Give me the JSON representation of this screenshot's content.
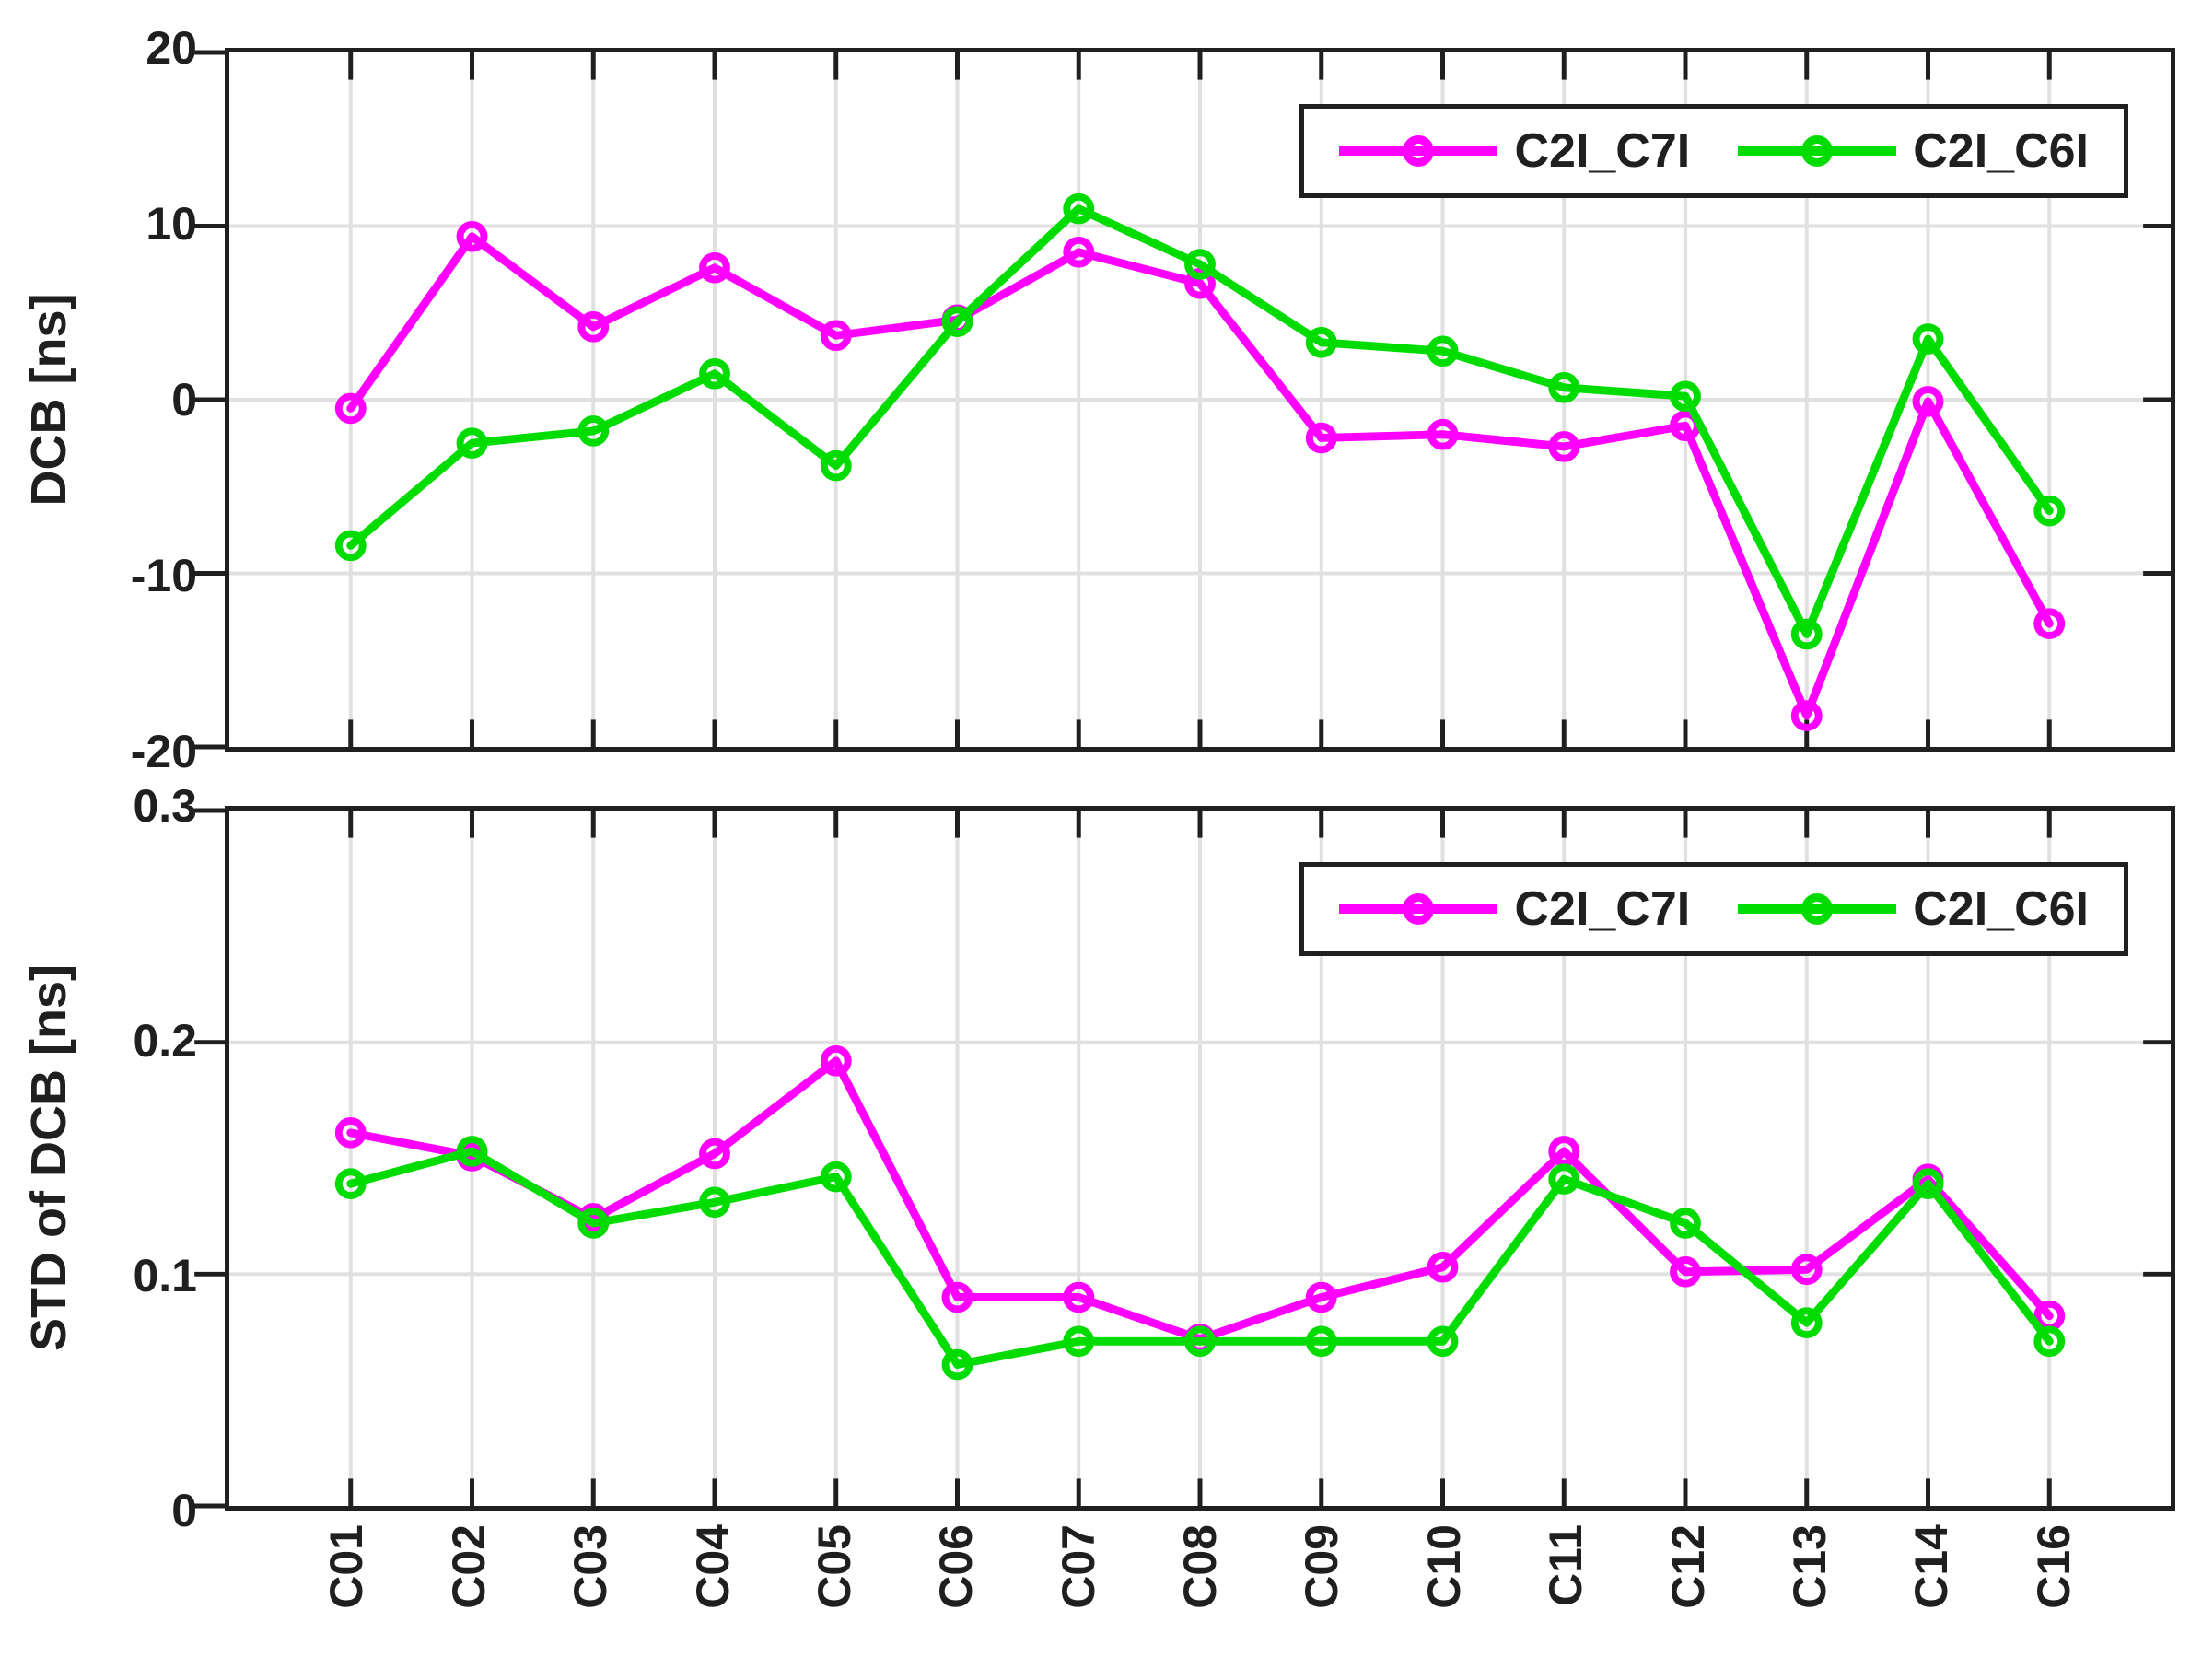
{
  "figure": {
    "background": "#ffffff",
    "axis_color": "#1f1f1f",
    "grid_color": "#e0e0e0",
    "tick_label_color": "#1f1f1f"
  },
  "chart_data": [
    {
      "type": "line",
      "title": "",
      "xlabel": "",
      "ylabel": "DCB [ns]",
      "categories": [
        "C01",
        "C02",
        "C03",
        "C04",
        "C05",
        "C06",
        "C07",
        "C08",
        "C09",
        "C10",
        "C11",
        "C12",
        "C13",
        "C14",
        "C16"
      ],
      "ylim": [
        -20,
        20
      ],
      "yticks": [
        20,
        10,
        0,
        -10,
        -20
      ],
      "ytick_labels": [
        "20",
        "10",
        "0",
        "-10",
        "-20"
      ],
      "grid": true,
      "legend_position": "inside-top-right",
      "series": [
        {
          "name": "C2I_C7I",
          "color": "#ff00ff",
          "values": [
            -0.5,
            9.4,
            4.2,
            7.6,
            3.7,
            4.6,
            8.5,
            6.7,
            -2.2,
            -2.0,
            -2.7,
            -1.5,
            -18.2,
            -0.1,
            -12.9
          ]
        },
        {
          "name": "C2I_C6I",
          "color": "#00dc00",
          "values": [
            -8.4,
            -2.5,
            -1.8,
            1.5,
            -3.8,
            4.5,
            11.0,
            7.8,
            3.3,
            2.8,
            0.7,
            0.2,
            -13.5,
            3.5,
            -6.4
          ]
        }
      ]
    },
    {
      "type": "line",
      "title": "",
      "xlabel": "",
      "ylabel": "STD of DCB [ns]",
      "categories": [
        "C01",
        "C02",
        "C03",
        "C04",
        "C05",
        "C06",
        "C07",
        "C08",
        "C09",
        "C10",
        "C11",
        "C12",
        "C13",
        "C14",
        "C16"
      ],
      "ylim": [
        0,
        0.3
      ],
      "yticks": [
        0.3,
        0.2,
        0.1,
        0
      ],
      "ytick_labels": [
        "0.3",
        "0.2",
        "0.1",
        "0"
      ],
      "grid": true,
      "legend_position": "inside-top-right",
      "series": [
        {
          "name": "C2I_C7I",
          "color": "#ff00ff",
          "values": [
            0.161,
            0.151,
            0.124,
            0.152,
            0.192,
            0.09,
            0.09,
            0.072,
            0.09,
            0.103,
            0.153,
            0.101,
            0.102,
            0.141,
            0.082
          ]
        },
        {
          "name": "C2I_C6I",
          "color": "#00dc00",
          "values": [
            0.139,
            0.153,
            0.122,
            0.131,
            0.142,
            0.061,
            0.071,
            0.071,
            0.071,
            0.071,
            0.141,
            0.122,
            0.079,
            0.139,
            0.071
          ]
        }
      ]
    }
  ]
}
